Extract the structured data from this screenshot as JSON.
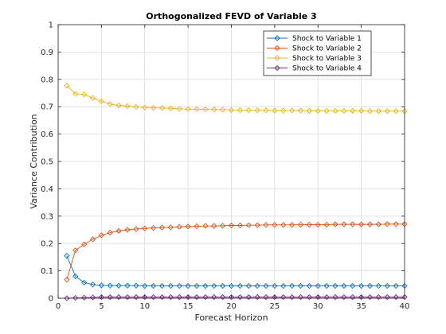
{
  "chart_data": {
    "type": "line",
    "title": "Orthogonalized FEVD of Variable 3",
    "xlabel": "Forecast Horizon",
    "ylabel": "Variance Contribution",
    "xlim": [
      0,
      40
    ],
    "ylim": [
      0,
      1
    ],
    "xticks": [
      0,
      5,
      10,
      15,
      20,
      25,
      30,
      35,
      40
    ],
    "yticks": [
      0,
      0.1,
      0.2,
      0.3,
      0.4,
      0.5,
      0.6,
      0.7,
      0.8,
      0.9,
      1
    ],
    "ytick_labels": [
      "0",
      "0.1",
      "0.2",
      "0.3",
      "0.4",
      "0.5",
      "0.6",
      "0.7",
      "0.8",
      "0.9",
      "1"
    ],
    "xtick_labels": [
      "0",
      "5",
      "10",
      "15",
      "20",
      "25",
      "30",
      "35",
      "40"
    ],
    "grid": true,
    "legend_position": "top-right",
    "marker": "diamond",
    "x": [
      1,
      2,
      3,
      4,
      5,
      6,
      7,
      8,
      9,
      10,
      11,
      12,
      13,
      14,
      15,
      16,
      17,
      18,
      19,
      20,
      21,
      22,
      23,
      24,
      25,
      26,
      27,
      28,
      29,
      30,
      31,
      32,
      33,
      34,
      35,
      36,
      37,
      38,
      39,
      40
    ],
    "series": [
      {
        "name": "Shock to Variable 1",
        "color": "#0072BD",
        "values": [
          0.155,
          0.08,
          0.057,
          0.05,
          0.047,
          0.046,
          0.046,
          0.046,
          0.046,
          0.045,
          0.045,
          0.045,
          0.045,
          0.045,
          0.045,
          0.045,
          0.045,
          0.045,
          0.045,
          0.045,
          0.045,
          0.045,
          0.045,
          0.045,
          0.045,
          0.045,
          0.045,
          0.045,
          0.045,
          0.045,
          0.045,
          0.045,
          0.045,
          0.045,
          0.045,
          0.045,
          0.045,
          0.045,
          0.045,
          0.045
        ]
      },
      {
        "name": "Shock to Variable 2",
        "color": "#D95319",
        "values": [
          0.068,
          0.175,
          0.197,
          0.215,
          0.23,
          0.24,
          0.246,
          0.25,
          0.253,
          0.255,
          0.257,
          0.258,
          0.259,
          0.261,
          0.262,
          0.263,
          0.264,
          0.264,
          0.265,
          0.266,
          0.266,
          0.267,
          0.267,
          0.268,
          0.268,
          0.268,
          0.268,
          0.269,
          0.269,
          0.269,
          0.269,
          0.27,
          0.27,
          0.27,
          0.27,
          0.27,
          0.27,
          0.271,
          0.271,
          0.271
        ]
      },
      {
        "name": "Shock to Variable 3",
        "color": "#EDB120",
        "values": [
          0.777,
          0.747,
          0.745,
          0.732,
          0.72,
          0.71,
          0.705,
          0.702,
          0.699,
          0.697,
          0.696,
          0.695,
          0.694,
          0.692,
          0.691,
          0.691,
          0.69,
          0.69,
          0.689,
          0.688,
          0.688,
          0.687,
          0.687,
          0.687,
          0.686,
          0.686,
          0.686,
          0.686,
          0.685,
          0.685,
          0.685,
          0.685,
          0.685,
          0.685,
          0.685,
          0.684,
          0.684,
          0.684,
          0.684,
          0.684
        ]
      },
      {
        "name": "Shock to Variable 4",
        "color": "#7E2F8E",
        "values": [
          0.0,
          0.001,
          0.002,
          0.003,
          0.004,
          0.004,
          0.004,
          0.004,
          0.004,
          0.004,
          0.004,
          0.004,
          0.004,
          0.004,
          0.004,
          0.004,
          0.004,
          0.004,
          0.004,
          0.004,
          0.004,
          0.004,
          0.004,
          0.004,
          0.004,
          0.004,
          0.004,
          0.004,
          0.004,
          0.004,
          0.004,
          0.004,
          0.004,
          0.004,
          0.004,
          0.004,
          0.004,
          0.004,
          0.004,
          0.004
        ]
      }
    ]
  }
}
